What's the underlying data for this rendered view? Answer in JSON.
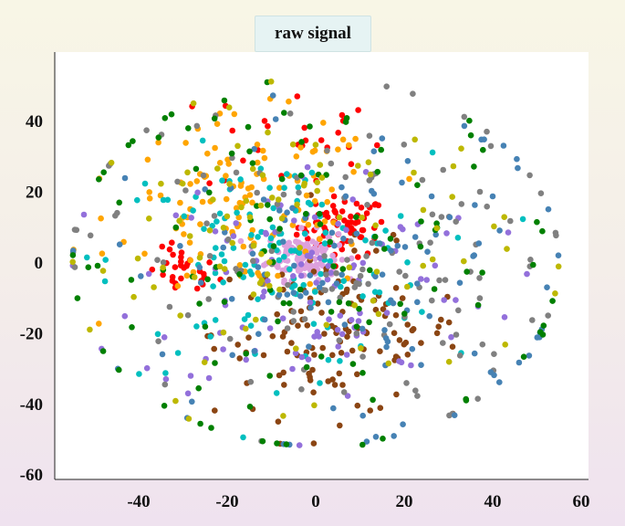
{
  "chart_data": {
    "type": "scatter",
    "title": "raw signal",
    "xlabel": "",
    "ylabel": "",
    "xlim": [
      -60,
      62
    ],
    "ylim": [
      -60,
      60
    ],
    "x_ticks": [
      "-40",
      "-20",
      "0",
      "20",
      "40",
      "60"
    ],
    "y_ticks": [
      "40",
      "20",
      "0",
      "-20",
      "-40",
      "-60"
    ],
    "grid": false,
    "legend": "none",
    "cluster_colors": [
      "#4682b4",
      "#ff0000",
      "#ffa500",
      "#00bfbf",
      "#9370db",
      "#8b4513",
      "#808080",
      "#bdb800",
      "#008000",
      "#dda0dd"
    ],
    "clusters": [
      {
        "color": "#ff0000",
        "center": [
          6,
          10
        ],
        "spread": 5,
        "count": 70
      },
      {
        "color": "#ff0000",
        "center": [
          -30,
          -3
        ],
        "spread": 4,
        "count": 30
      },
      {
        "color": "#ff0000",
        "center": [
          -5,
          35
        ],
        "spread": 10,
        "count": 25
      },
      {
        "color": "#dda0dd",
        "center": [
          -3,
          2
        ],
        "spread": 4,
        "count": 120
      },
      {
        "color": "#8b4513",
        "center": [
          5,
          -20
        ],
        "spread": 14,
        "count": 130
      },
      {
        "color": "#ffa500",
        "center": [
          -15,
          15
        ],
        "spread": 15,
        "count": 120
      },
      {
        "color": "#00bfbf",
        "center": [
          -10,
          0
        ],
        "spread": 18,
        "count": 130
      },
      {
        "color": "#9370db",
        "center": [
          0,
          -5
        ],
        "spread": 20,
        "count": 110
      },
      {
        "color": "#808080",
        "center": [
          0,
          0
        ],
        "spread": 28,
        "count": 140
      },
      {
        "color": "#4682b4",
        "center": [
          10,
          -5
        ],
        "spread": 28,
        "count": 120
      },
      {
        "color": "#008000",
        "center": [
          0,
          0
        ],
        "spread": 30,
        "count": 120
      },
      {
        "color": "#bdb800",
        "center": [
          -5,
          5
        ],
        "spread": 24,
        "count": 100
      }
    ]
  }
}
